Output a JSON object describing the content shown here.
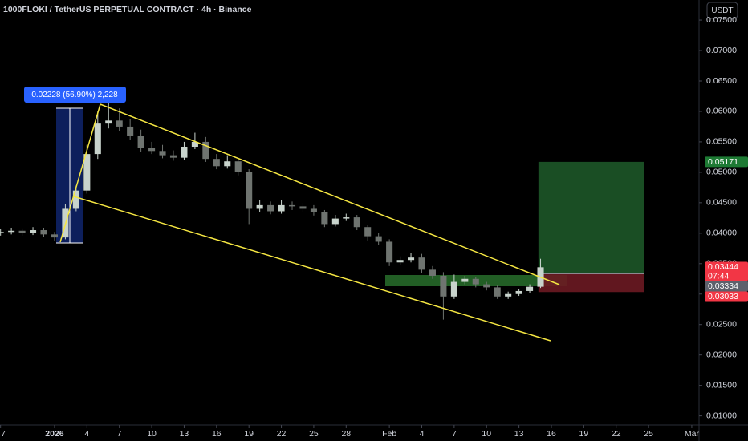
{
  "chart_data": {
    "type": "candlestick",
    "title": "1000FLOKI / TetherUS PERPETUAL CONTRACT · 4h · Binance",
    "currency": "USDT",
    "measure_label": "0.02228 (56.90%) 2,228",
    "up_color": "#c8d3cc",
    "down_color": "#6f7470",
    "grid": false,
    "x": [
      -5,
      -4,
      -3,
      -2,
      -1,
      0,
      1,
      2,
      3,
      4,
      5,
      6,
      7,
      8,
      9,
      10,
      11,
      12,
      13,
      14,
      15,
      16,
      17,
      18,
      19,
      20,
      21,
      22,
      23,
      24,
      25,
      26,
      27,
      28,
      29,
      30,
      31,
      32,
      33,
      34,
      35,
      36,
      37,
      38,
      39,
      40,
      41,
      42,
      43,
      44,
      45
    ],
    "open": [
      0.04,
      0.0402,
      0.0404,
      0.04,
      0.0405,
      0.0398,
      0.0393,
      0.044,
      0.047,
      0.053,
      0.058,
      0.0585,
      0.0575,
      0.056,
      0.054,
      0.0535,
      0.0528,
      0.0524,
      0.0542,
      0.055,
      0.0522,
      0.051,
      0.0518,
      0.05,
      0.044,
      0.0446,
      0.0436,
      0.0446,
      0.0444,
      0.044,
      0.0434,
      0.0415,
      0.0424,
      0.0426,
      0.041,
      0.0395,
      0.0386,
      0.0352,
      0.0356,
      0.036,
      0.034,
      0.033,
      0.0296,
      0.032,
      0.0325,
      0.0316,
      0.0311,
      0.0296,
      0.03,
      0.0305,
      0.0312
    ],
    "high": [
      0.0407,
      0.0409,
      0.0408,
      0.041,
      0.0409,
      0.0402,
      0.0448,
      0.0478,
      0.0545,
      0.06,
      0.0622,
      0.0605,
      0.0588,
      0.057,
      0.055,
      0.0545,
      0.0536,
      0.055,
      0.0565,
      0.0558,
      0.053,
      0.0528,
      0.0524,
      0.0505,
      0.0455,
      0.0452,
      0.0454,
      0.0452,
      0.045,
      0.0446,
      0.0438,
      0.043,
      0.0432,
      0.043,
      0.0414,
      0.04,
      0.039,
      0.0362,
      0.0368,
      0.0366,
      0.0346,
      0.0336,
      0.0332,
      0.033,
      0.0328,
      0.032,
      0.0314,
      0.0304,
      0.0308,
      0.0316,
      0.0358
    ],
    "low": [
      0.0396,
      0.0398,
      0.0396,
      0.0397,
      0.0394,
      0.0388,
      0.039,
      0.0436,
      0.0465,
      0.0522,
      0.0572,
      0.0568,
      0.0553,
      0.0534,
      0.053,
      0.0523,
      0.0519,
      0.052,
      0.0538,
      0.0517,
      0.0505,
      0.0506,
      0.0495,
      0.0415,
      0.0434,
      0.0431,
      0.0432,
      0.0438,
      0.0435,
      0.0429,
      0.041,
      0.0411,
      0.042,
      0.0405,
      0.0388,
      0.038,
      0.0346,
      0.0348,
      0.0352,
      0.0335,
      0.0325,
      0.0258,
      0.0292,
      0.0316,
      0.0311,
      0.0306,
      0.0292,
      0.0292,
      0.0297,
      0.0302,
      0.031
    ],
    "close": [
      0.0402,
      0.0404,
      0.04,
      0.0405,
      0.0398,
      0.0393,
      0.044,
      0.047,
      0.053,
      0.058,
      0.0585,
      0.0575,
      0.056,
      0.054,
      0.0535,
      0.0528,
      0.0524,
      0.0542,
      0.055,
      0.0522,
      0.051,
      0.0518,
      0.05,
      0.044,
      0.0446,
      0.0436,
      0.0446,
      0.0444,
      0.044,
      0.0434,
      0.0415,
      0.0424,
      0.0426,
      0.041,
      0.0395,
      0.0386,
      0.0352,
      0.0356,
      0.036,
      0.034,
      0.033,
      0.0296,
      0.032,
      0.0325,
      0.0316,
      0.0311,
      0.0296,
      0.03,
      0.0305,
      0.0312,
      0.0344
    ],
    "xlim": [
      -5.05,
      59.6
    ],
    "xticks": [
      {
        "value": -5,
        "label": "7"
      },
      {
        "value": 0,
        "label": "2026"
      },
      {
        "value": 3,
        "label": "4"
      },
      {
        "value": 6,
        "label": "7"
      },
      {
        "value": 9,
        "label": "10"
      },
      {
        "value": 12,
        "label": "13"
      },
      {
        "value": 15,
        "label": "16"
      },
      {
        "value": 18,
        "label": "19"
      },
      {
        "value": 21,
        "label": "22"
      },
      {
        "value": 24,
        "label": "25"
      },
      {
        "value": 27,
        "label": "28"
      },
      {
        "value": 31,
        "label": "Feb"
      },
      {
        "value": 34,
        "label": "4"
      },
      {
        "value": 37,
        "label": "7"
      },
      {
        "value": 40,
        "label": "10"
      },
      {
        "value": 43,
        "label": "13"
      },
      {
        "value": 46,
        "label": "16"
      },
      {
        "value": 49,
        "label": "19"
      },
      {
        "value": 52,
        "label": "22"
      },
      {
        "value": 55,
        "label": "25"
      },
      {
        "value": 59,
        "label": "Mar"
      }
    ],
    "ylim": [
      0.0085,
      0.0783
    ],
    "yticks": [
      {
        "value": 0.075,
        "label": "0.07500"
      },
      {
        "value": 0.07,
        "label": "0.07000"
      },
      {
        "value": 0.065,
        "label": "0.06500"
      },
      {
        "value": 0.06,
        "label": "0.06000"
      },
      {
        "value": 0.055,
        "label": "0.05500"
      },
      {
        "value": 0.05,
        "label": "0.05000"
      },
      {
        "value": 0.045,
        "label": "0.04500"
      },
      {
        "value": 0.04,
        "label": "0.04000"
      },
      {
        "value": 0.035,
        "label": "0.03500"
      },
      {
        "value": 0.03,
        "label": "0.03000"
      },
      {
        "value": 0.025,
        "label": "0.02500"
      },
      {
        "value": 0.02,
        "label": "0.02000"
      },
      {
        "value": 0.015,
        "label": "0.01500"
      },
      {
        "value": 0.01,
        "label": "0.01000"
      }
    ],
    "position": {
      "target": 0.05171,
      "entry": 0.03334,
      "stop": 0.03033
    },
    "price_tags": [
      {
        "value": 0.05171,
        "label": "0.05171",
        "color": "#1e7a34"
      },
      {
        "value": 0.03444,
        "label": "0.03444",
        "color": "#f23645",
        "countdown": "07:44"
      },
      {
        "value": 0.03334,
        "label": "0.03334",
        "color": "#5d606b"
      },
      {
        "value": 0.03033,
        "label": "0.03033",
        "color": "#f23645"
      }
    ]
  }
}
